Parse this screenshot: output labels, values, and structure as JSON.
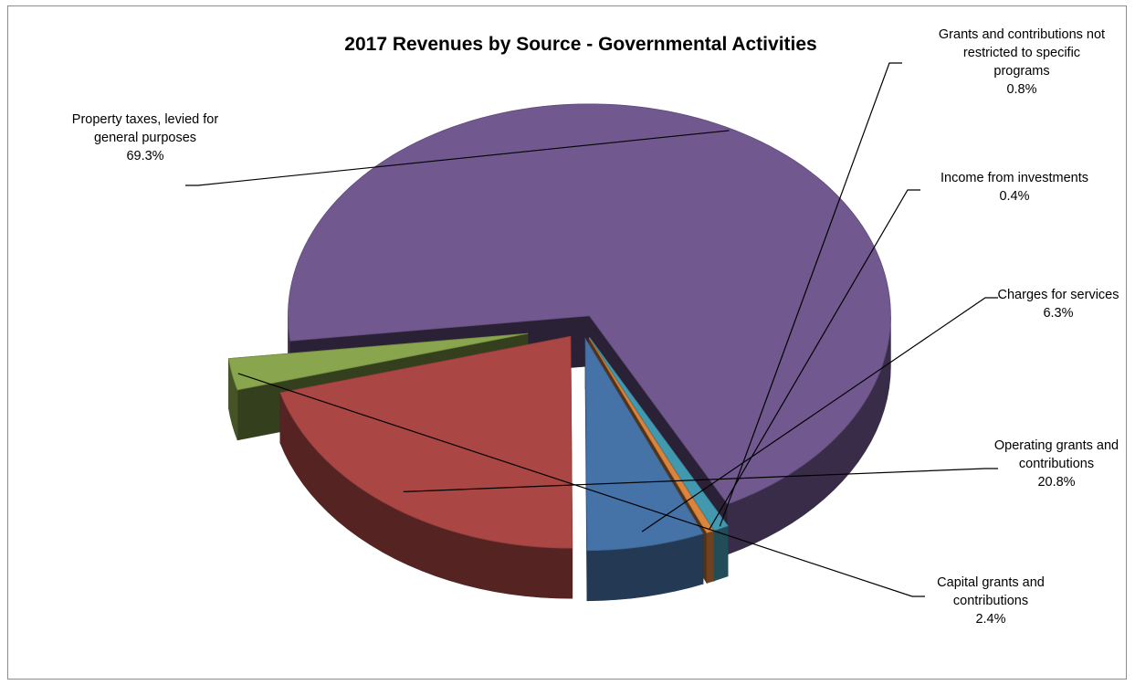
{
  "chart_data": {
    "type": "pie",
    "title": "2017 Revenues by Source - Governmental Activities",
    "slices": [
      {
        "name": "Charges for services",
        "value": 6.3,
        "percent_label": "6.3%",
        "label_lines": [
          "Charges for services"
        ],
        "color": "#4572A7"
      },
      {
        "name": "Operating grants and contributions",
        "value": 20.8,
        "percent_label": "20.8%",
        "label_lines": [
          "Operating grants and",
          "contributions"
        ],
        "color": "#AA4643"
      },
      {
        "name": "Capital grants and contributions",
        "value": 2.4,
        "percent_label": "2.4%",
        "label_lines": [
          "Capital grants and",
          "contributions"
        ],
        "color": "#89A54E"
      },
      {
        "name": "Property taxes, levied for general purposes",
        "value": 69.3,
        "percent_label": "69.3%",
        "label_lines": [
          "Property taxes, levied for",
          "general purposes"
        ],
        "color": "#71588F"
      },
      {
        "name": "Grants and contributions not restricted to specific programs",
        "value": 0.8,
        "percent_label": "0.8%",
        "label_lines": [
          "Grants and contributions not",
          "restricted to specific",
          "programs"
        ],
        "color": "#4198AF"
      },
      {
        "name": "Income from investments",
        "value": 0.4,
        "percent_label": "0.4%",
        "label_lines": [
          "Income from investments"
        ],
        "color": "#DB843D"
      }
    ],
    "style": "3d-exploded",
    "legend": "none"
  }
}
